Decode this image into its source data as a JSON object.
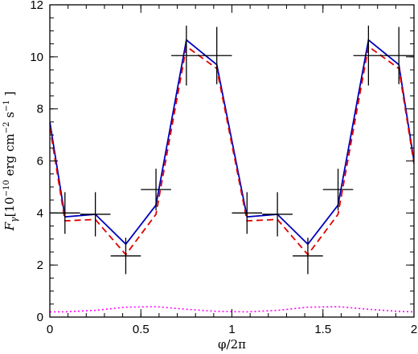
{
  "chart_data": {
    "type": "line",
    "title": "",
    "xlabel": "φ/2π",
    "ylabel": {
      "symbol": "F",
      "subscript": "γ",
      "bracket_open": "[",
      "mantissa": "10",
      "exponent": "−10",
      "unit_erg": " erg cm",
      "exp_cm": "−2",
      "unit_s": " s",
      "exp_s": "−1",
      "bracket_close": " ]"
    },
    "xlim": [
      0,
      2
    ],
    "ylim": [
      0,
      12
    ],
    "xticks": [
      0,
      0.5,
      1,
      1.5,
      2
    ],
    "xtick_labels": [
      "0",
      "0.5",
      "1",
      "1.5",
      "2"
    ],
    "yticks": [
      0,
      2,
      4,
      6,
      8,
      10,
      12
    ],
    "ytick_labels": [
      "0",
      "2",
      "4",
      "6",
      "8",
      "10",
      "12"
    ],
    "grid": false,
    "observations": {
      "color": "#000000",
      "points": [
        {
          "x": 0.083,
          "y": 4.0,
          "xerr": 0.083,
          "yerr": 0.8
        },
        {
          "x": 0.25,
          "y": 3.95,
          "xerr": 0.083,
          "yerr": 0.85
        },
        {
          "x": 0.417,
          "y": 2.35,
          "xerr": 0.083,
          "yerr": 0.7
        },
        {
          "x": 0.583,
          "y": 4.9,
          "xerr": 0.083,
          "yerr": 0.8
        },
        {
          "x": 0.75,
          "y": 10.05,
          "xerr": 0.083,
          "yerr": 1.15
        },
        {
          "x": 0.917,
          "y": 10.05,
          "xerr": 0.083,
          "yerr": 1.1
        },
        {
          "x": 1.083,
          "y": 4.0,
          "xerr": 0.083,
          "yerr": 0.8
        },
        {
          "x": 1.25,
          "y": 3.95,
          "xerr": 0.083,
          "yerr": 0.85
        },
        {
          "x": 1.417,
          "y": 2.35,
          "xerr": 0.083,
          "yerr": 0.7
        },
        {
          "x": 1.583,
          "y": 4.9,
          "xerr": 0.083,
          "yerr": 0.8
        },
        {
          "x": 1.75,
          "y": 10.05,
          "xerr": 0.083,
          "yerr": 1.15
        },
        {
          "x": 1.917,
          "y": 10.05,
          "xerr": 0.083,
          "yerr": 1.1
        }
      ]
    },
    "series": [
      {
        "style": "solid",
        "color": "#0000bb",
        "x": [
          0,
          0.083,
          0.25,
          0.417,
          0.583,
          0.75,
          0.917,
          1.083,
          1.25,
          1.417,
          1.583,
          1.75,
          1.917,
          2.0
        ],
        "y": [
          7.5,
          3.85,
          3.95,
          2.8,
          4.3,
          10.65,
          9.7,
          3.85,
          3.95,
          2.8,
          4.3,
          10.65,
          9.7,
          6.0
        ]
      },
      {
        "style": "dashed",
        "color": "#dd0000",
        "x": [
          0,
          0.083,
          0.25,
          0.417,
          0.583,
          0.75,
          0.917,
          1.083,
          1.25,
          1.417,
          1.583,
          1.75,
          1.917,
          2.0
        ],
        "y": [
          7.3,
          3.7,
          3.75,
          2.4,
          3.95,
          10.4,
          9.55,
          3.7,
          3.75,
          2.4,
          3.95,
          10.4,
          9.55,
          5.9
        ]
      },
      {
        "style": "dotted",
        "color": "#ff00ff",
        "x": [
          0,
          0.083,
          0.25,
          0.417,
          0.583,
          0.75,
          0.917,
          1.083,
          1.25,
          1.417,
          1.583,
          1.75,
          1.917,
          2.0
        ],
        "y": [
          0.2,
          0.2,
          0.26,
          0.38,
          0.4,
          0.3,
          0.22,
          0.2,
          0.26,
          0.38,
          0.4,
          0.3,
          0.22,
          0.2
        ]
      }
    ]
  }
}
